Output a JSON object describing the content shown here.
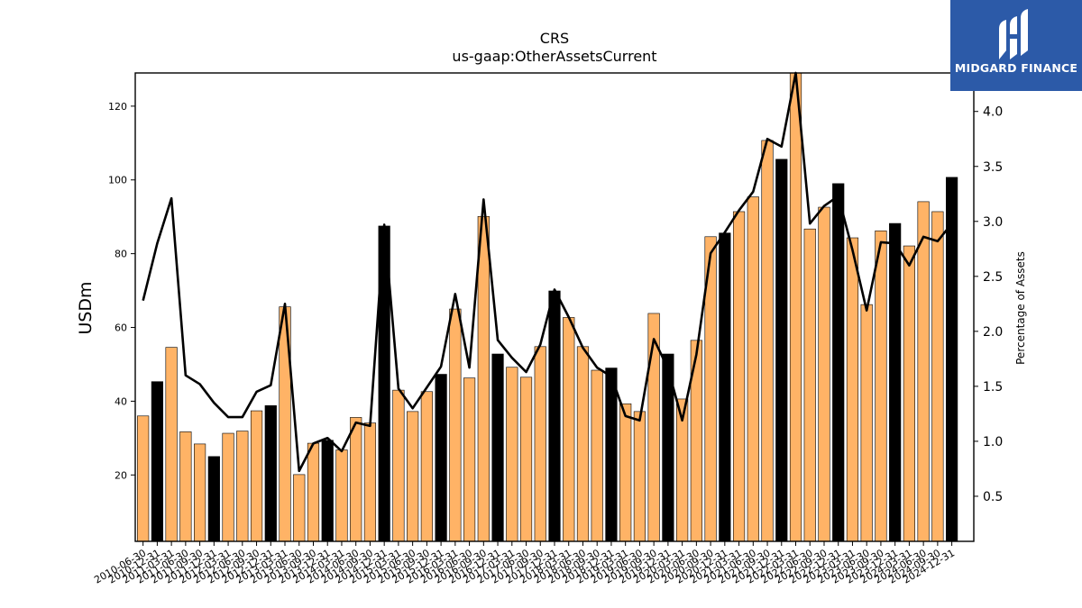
{
  "brand": {
    "name": "MIDGARD FINANCE",
    "bg_color": "#2c5aa8"
  },
  "chart_data": {
    "type": "bar",
    "title": "CRS",
    "subtitle": "us-gaap:OtherAssetsCurrent",
    "ylabel": "USDm",
    "y2label": "Percentage of Assets",
    "ylim": [
      2,
      129
    ],
    "y2lim": [
      0.09,
      4.35
    ],
    "yticks": [
      20,
      40,
      60,
      80,
      100,
      120
    ],
    "y2ticks": [
      0.5,
      1.0,
      1.5,
      2.0,
      2.5,
      3.0,
      3.5,
      4.0
    ],
    "y2tick_labels": [
      "0.5",
      "1.0",
      "1.5",
      "2.0",
      "2.5",
      "3.0",
      "3.5",
      "4.0"
    ],
    "bar_colors": {
      "quarter": "#ffb366",
      "fiscal_year_end": "#000000"
    },
    "line_color": "#000000",
    "categories": [
      "2010-06-30",
      "2010-12-31",
      "2011-03-31",
      "2011-06-30",
      "2011-09-30",
      "2011-12-31",
      "2012-03-31",
      "2012-06-30",
      "2012-09-30",
      "2012-12-31",
      "2013-03-31",
      "2013-06-30",
      "2013-09-30",
      "2013-12-31",
      "2014-03-31",
      "2014-06-30",
      "2014-09-30",
      "2014-12-31",
      "2015-03-31",
      "2015-06-30",
      "2015-09-30",
      "2015-12-31",
      "2016-03-31",
      "2016-06-30",
      "2016-09-30",
      "2016-12-31",
      "2017-03-31",
      "2017-06-30",
      "2017-09-30",
      "2017-12-31",
      "2018-03-31",
      "2018-06-30",
      "2018-09-30",
      "2018-12-31",
      "2019-03-31",
      "2019-06-30",
      "2019-09-30",
      "2019-12-31",
      "2020-03-31",
      "2020-06-30",
      "2020-09-30",
      "2020-12-31",
      "2021-03-31",
      "2021-06-30",
      "2021-09-30",
      "2021-12-31",
      "2022-03-31",
      "2022-06-30",
      "2022-09-30",
      "2022-12-31",
      "2023-03-31",
      "2023-06-30",
      "2023-09-30",
      "2023-12-31",
      "2024-03-31",
      "2024-06-30",
      "2024-09-30",
      "2024-12-31"
    ],
    "series": [
      {
        "type": "bar",
        "axis": "left",
        "values": [
          36.0,
          45.3,
          54.6,
          31.7,
          28.4,
          25.0,
          31.3,
          31.9,
          37.4,
          38.8,
          65.6,
          20.1,
          28.6,
          29.4,
          26.8,
          35.6,
          34.1,
          87.5,
          43.0,
          37.2,
          42.6,
          47.3,
          65.0,
          46.3,
          90.1,
          52.8,
          49.2,
          46.5,
          54.8,
          69.9,
          62.7,
          54.8,
          48.4,
          49.0,
          39.3,
          37.2,
          63.8,
          52.8,
          40.6,
          56.5,
          84.6,
          85.6,
          91.4,
          95.4,
          110.7,
          105.6,
          129.0,
          86.7,
          92.6,
          99.0,
          84.3,
          66.2,
          86.2,
          88.2,
          82.1,
          94.1,
          91.4,
          100.7
        ],
        "fiscal_year_end": [
          false,
          true,
          false,
          false,
          false,
          true,
          false,
          false,
          false,
          true,
          false,
          false,
          false,
          true,
          false,
          false,
          false,
          true,
          false,
          false,
          false,
          true,
          false,
          false,
          false,
          true,
          false,
          false,
          false,
          true,
          false,
          false,
          false,
          true,
          false,
          false,
          false,
          true,
          false,
          false,
          false,
          true,
          false,
          false,
          false,
          true,
          false,
          false,
          false,
          true,
          false,
          false,
          false,
          true,
          false,
          false,
          false,
          true
        ]
      },
      {
        "type": "line",
        "axis": "right",
        "values": [
          2.28,
          2.8,
          3.21,
          1.6,
          1.52,
          1.35,
          1.22,
          1.22,
          1.45,
          1.51,
          2.25,
          0.73,
          0.98,
          1.03,
          0.91,
          1.17,
          1.14,
          2.97,
          1.48,
          1.3,
          1.49,
          1.68,
          2.34,
          1.67,
          3.2,
          1.92,
          1.76,
          1.63,
          1.88,
          2.38,
          2.13,
          1.85,
          1.67,
          1.59,
          1.23,
          1.19,
          1.93,
          1.66,
          1.19,
          1.79,
          2.71,
          2.9,
          3.1,
          3.27,
          3.75,
          3.68,
          4.37,
          2.98,
          3.14,
          3.23,
          2.74,
          2.19,
          2.81,
          2.8,
          2.6,
          2.86,
          2.82,
          2.98
        ]
      }
    ]
  }
}
